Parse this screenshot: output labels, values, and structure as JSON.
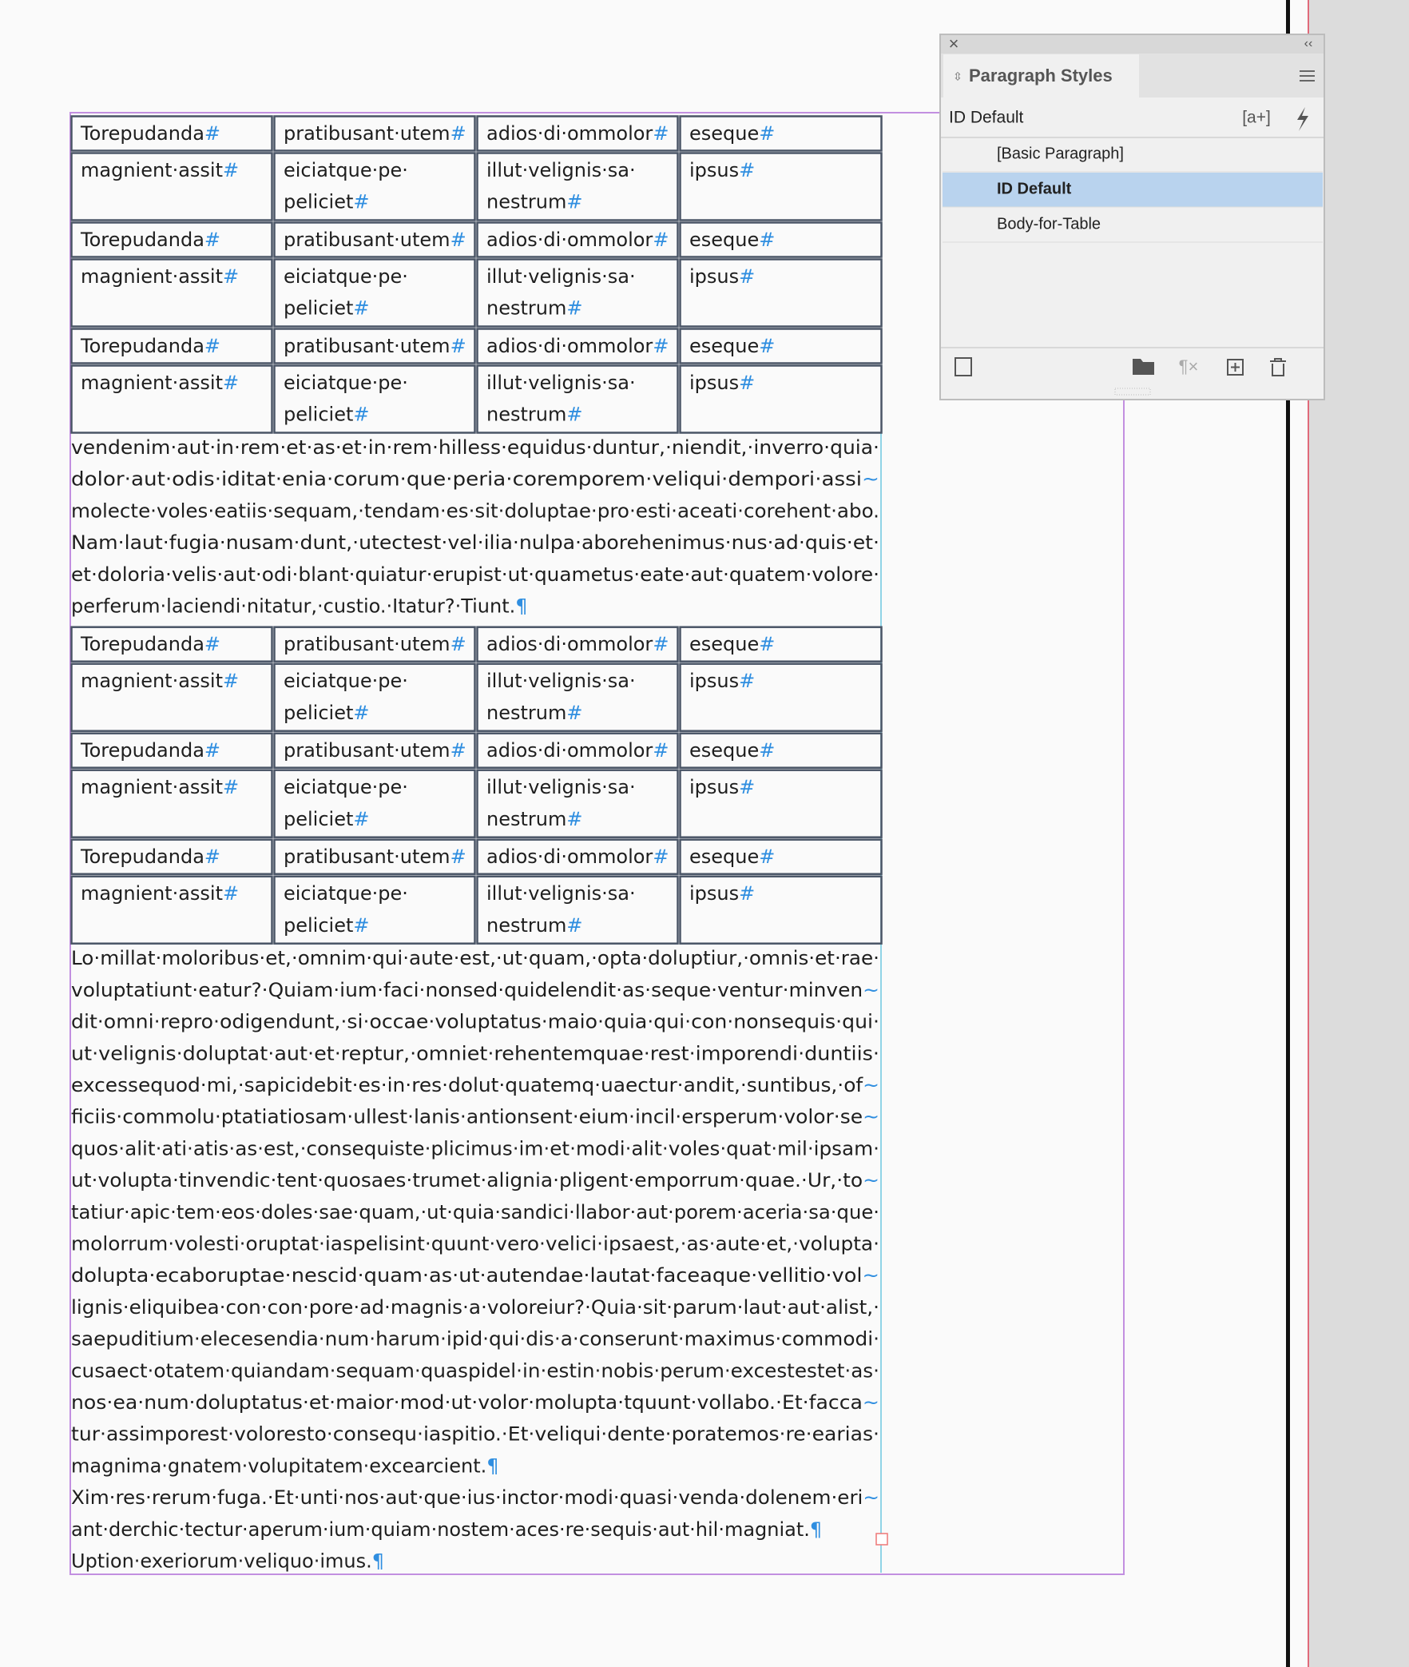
{
  "story": [
    {
      "rows": [
        [
          [
            "Torepudanda#"
          ],
          [
            "pratibusant·utem#"
          ],
          [
            "adios·di·ommolor#"
          ],
          [
            "eseque#"
          ]
        ],
        [
          [
            "magnient·assit#"
          ],
          [
            "eiciatque·pe·",
            "peliciet#"
          ],
          [
            "illut·velignis·sa·",
            "nestrum#"
          ],
          [
            "ipsus#"
          ]
        ],
        [
          [
            "Torepudanda#"
          ],
          [
            "pratibusant·utem#"
          ],
          [
            "adios·di·ommolor#"
          ],
          [
            "eseque#"
          ]
        ],
        [
          [
            "magnient·assit#"
          ],
          [
            "eiciatque·pe·",
            "peliciet#"
          ],
          [
            "illut·velignis·sa·",
            "nestrum#"
          ],
          [
            "ipsus#"
          ]
        ],
        [
          [
            "Torepudanda#"
          ],
          [
            "pratibusant·utem#"
          ],
          [
            "adios·di·ommolor#"
          ],
          [
            "eseque#"
          ]
        ],
        [
          [
            "magnient·assit#"
          ],
          [
            "eiciatque·pe·",
            "peliciet#"
          ],
          [
            "illut·velignis·sa·",
            "nestrum#"
          ],
          [
            "ipsus#"
          ]
        ]
      ]
    },
    {
      "lines": [
        "vendenim·aut·in·rem·et·as·et·in·rem·hilless·equidus·duntur,·niendit,·inverro·quia·",
        "dolor·aut·odis·iditat·enia·corum·que·peria·coremporem·veliqui·dempori·assi~",
        "molecte·voles·eatiis·sequam,·tendam·es·sit·doluptae·pro·esti·aceati·corehent·abo.",
        "Nam·laut·fugia·nusam·dunt,·utectest·vel·ilia·nulpa·aborehenimus·nus·ad·quis·et·",
        "et·doloria·velis·aut·odi·blant·quiatur·erupist·ut·quametus·eate·aut·quatem·volore·",
        "perferum·laciendi·nitatur,·custio.·Itatur?·Tiunt.¶"
      ]
    },
    {
      "rows": [
        [
          [
            "Torepudanda#"
          ],
          [
            "pratibusant·utem#"
          ],
          [
            "adios·di·ommolor#"
          ],
          [
            "eseque#"
          ]
        ],
        [
          [
            "magnient·assit#"
          ],
          [
            "eiciatque·pe·",
            "peliciet#"
          ],
          [
            "illut·velignis·sa·",
            "nestrum#"
          ],
          [
            "ipsus#"
          ]
        ],
        [
          [
            "Torepudanda#"
          ],
          [
            "pratibusant·utem#"
          ],
          [
            "adios·di·ommolor#"
          ],
          [
            "eseque#"
          ]
        ],
        [
          [
            "magnient·assit#"
          ],
          [
            "eiciatque·pe·",
            "peliciet#"
          ],
          [
            "illut·velignis·sa·",
            "nestrum#"
          ],
          [
            "ipsus#"
          ]
        ],
        [
          [
            "Torepudanda#"
          ],
          [
            "pratibusant·utem#"
          ],
          [
            "adios·di·ommolor#"
          ],
          [
            "eseque#"
          ]
        ],
        [
          [
            "magnient·assit#"
          ],
          [
            "eiciatque·pe·",
            "peliciet#"
          ],
          [
            "illut·velignis·sa·",
            "nestrum#"
          ],
          [
            "ipsus#"
          ]
        ]
      ]
    },
    {
      "lines": [
        "Lo·millat·moloribus·et,·omnim·qui·aute·est,·ut·quam,·opta·doluptiur,·omnis·et·rae·",
        "voluptatiunt·eatur?·Quiam·ium·faci·nonsed·quidelendit·as·seque·ventur·minven~",
        "dit·omni·repro·odigendunt,·si·occae·voluptatus·maio·quia·qui·con·nonsequis·qui·",
        "ut·velignis·doluptat·aut·et·reptur,·omniet·rehentemquae·rest·imporendi·duntiis·",
        "excessequod·mi,·sapicidebit·es·in·res·dolut·quatemq·uaectur·andit,·suntibus,·of~",
        "ficiis·commolu·ptatiatiosam·ullest·lanis·antionsent·eium·incil·ersperum·volor·se~",
        "quos·alit·ati·atis·as·est,·consequiste·plicimus·im·et·modi·alit·voles·quat·mil·ipsam·",
        "ut·volupta·tinvendic·tent·quosaes·trumet·alignia·pligent·emporrum·quae.·Ur,·to~",
        "tatiur·apic·tem·eos·doles·sae·quam,·ut·quia·sandici·llabor·aut·porem·aceria·sa·que·",
        "molorrum·volesti·oruptat·iaspelisint·quunt·vero·velici·ipsaest,·as·aute·et,·volupta·",
        "dolupta·ecaboruptae·nescid·quam·as·ut·autendae·lautat·faceaque·vellitio·vol~",
        "lignis·eliquibea·con·con·pore·ad·magnis·a·voloreiur?·Quia·sit·parum·laut·aut·alist,·",
        "saepuditium·elecesendia·num·harum·ipid·qui·dis·a·conserunt·maximus·commodi·",
        "cusaect·otatem·quiandam·sequam·quaspidel·in·estin·nobis·perum·excestestet·as·",
        "nos·ea·num·doluptatus·et·maior·mod·ut·volor·molupta·tquunt·vollabo.·Et·facca~",
        "tur·assimporest·voloresto·consequ·iaspitio.·Et·veliqui·dente·poratemos·re·earias·",
        "magnima·gnatem·volupitatem·excearcient.¶",
        "Xim·res·rerum·fuga.·Et·unti·nos·aut·que·ius·inctor·modi·quasi·venda·dolenem·eri~",
        "ant·derchic·tectur·aperum·ium·quiam·nostem·aces·re·sequis·aut·hil·magniat.¶",
        "Uption·exeriorum·veliquo·imus.¶"
      ]
    }
  ],
  "panel": {
    "title": "Paragraph Styles",
    "current_style": "ID Default",
    "styles": [
      "[Basic Paragraph]",
      "ID Default",
      "Body-for-Table"
    ],
    "selected": 1
  }
}
